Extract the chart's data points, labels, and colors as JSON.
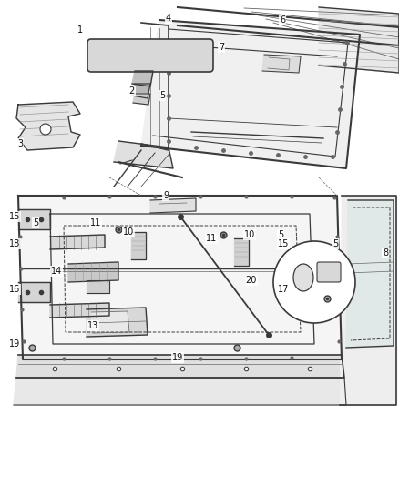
{
  "bg_color": "#ffffff",
  "fig_width": 4.38,
  "fig_height": 5.33,
  "dpi": 100,
  "lc": "#3a3a3a",
  "lc2": "#666666",
  "lc3": "#999999",
  "fs": 7.0
}
